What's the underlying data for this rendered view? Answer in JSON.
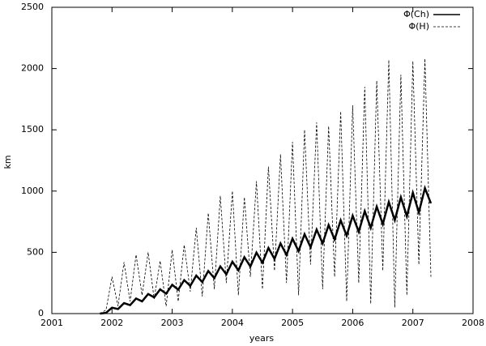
{
  "chart_data": {
    "type": "line",
    "xlabel": "years",
    "ylabel": "km",
    "xlim": [
      2001,
      2008
    ],
    "xticks": [
      2001,
      2002,
      2003,
      2004,
      2005,
      2006,
      2007,
      2008
    ],
    "ylim": [
      0,
      2500
    ],
    "yticks": [
      0,
      500,
      1000,
      1500,
      2000,
      2500
    ],
    "x": [
      2001.8,
      2001.9,
      2002.0,
      2002.1,
      2002.2,
      2002.3,
      2002.4,
      2002.5,
      2002.6,
      2002.7,
      2002.8,
      2002.9,
      2003.0,
      2003.1,
      2003.2,
      2003.3,
      2003.4,
      2003.5,
      2003.6,
      2003.7,
      2003.8,
      2003.9,
      2004.0,
      2004.1,
      2004.2,
      2004.3,
      2004.4,
      2004.5,
      2004.6,
      2004.7,
      2004.8,
      2004.9,
      2005.0,
      2005.1,
      2005.2,
      2005.3,
      2005.4,
      2005.5,
      2005.6,
      2005.7,
      2005.8,
      2005.9,
      2006.0,
      2006.1,
      2006.2,
      2006.3,
      2006.4,
      2006.5,
      2006.6,
      2006.7,
      2006.8,
      2006.9,
      2007.0,
      2007.1,
      2007.2,
      2007.3
    ],
    "series": [
      {
        "name": "Φ(Ch)",
        "color": "#000000",
        "dash": false,
        "values": [
          0,
          6,
          48,
          37,
          85,
          69,
          123,
          100,
          160,
          132,
          198,
          163,
          235,
          195,
          273,
          226,
          310,
          258,
          348,
          290,
          385,
          321,
          423,
          353,
          460,
          384,
          498,
          416,
          536,
          447,
          573,
          479,
          611,
          510,
          648,
          542,
          686,
          573,
          723,
          605,
          761,
          636,
          798,
          668,
          836,
          700,
          873,
          731,
          911,
          763,
          949,
          794,
          986,
          826,
          1024,
          900
        ]
      },
      {
        "name": "Φ(H)",
        "color": "#000000",
        "dash": true,
        "values": [
          0,
          30,
          300,
          60,
          420,
          100,
          480,
          150,
          500,
          120,
          430,
          60,
          520,
          100,
          560,
          180,
          700,
          140,
          820,
          200,
          960,
          250,
          1000,
          150,
          950,
          300,
          1080,
          200,
          1200,
          350,
          1300,
          250,
          1400,
          150,
          1500,
          400,
          1560,
          200,
          1530,
          300,
          1650,
          100,
          1700,
          250,
          1850,
          80,
          1900,
          350,
          2070,
          50,
          1950,
          150,
          2060,
          400,
          2080,
          300
        ]
      }
    ]
  }
}
